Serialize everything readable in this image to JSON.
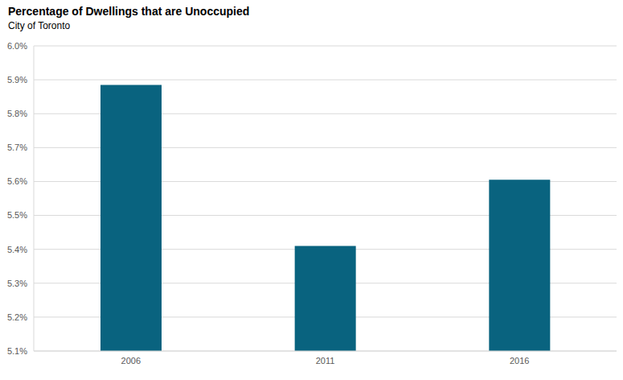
{
  "chart_data": {
    "type": "bar",
    "title": "Percentage of Dwellings that are Unoccupied",
    "subtitle": "City of Toronto",
    "categories": [
      "2006",
      "2011",
      "2016"
    ],
    "values": [
      5.885,
      5.41,
      5.605
    ],
    "color": "#09637f",
    "ylim": [
      5.1,
      6.0
    ],
    "yticks": [
      {
        "value": 5.1,
        "label": "5.1%"
      },
      {
        "value": 5.2,
        "label": "5.2%"
      },
      {
        "value": 5.3,
        "label": "5.3%"
      },
      {
        "value": 5.4,
        "label": "5.4%"
      },
      {
        "value": 5.5,
        "label": "5.5%"
      },
      {
        "value": 5.6,
        "label": "5.6%"
      },
      {
        "value": 5.7,
        "label": "5.7%"
      },
      {
        "value": 5.8,
        "label": "5.8%"
      },
      {
        "value": 5.9,
        "label": "5.9%"
      },
      {
        "value": 6.0,
        "label": "6.0%"
      }
    ],
    "grid": true
  }
}
